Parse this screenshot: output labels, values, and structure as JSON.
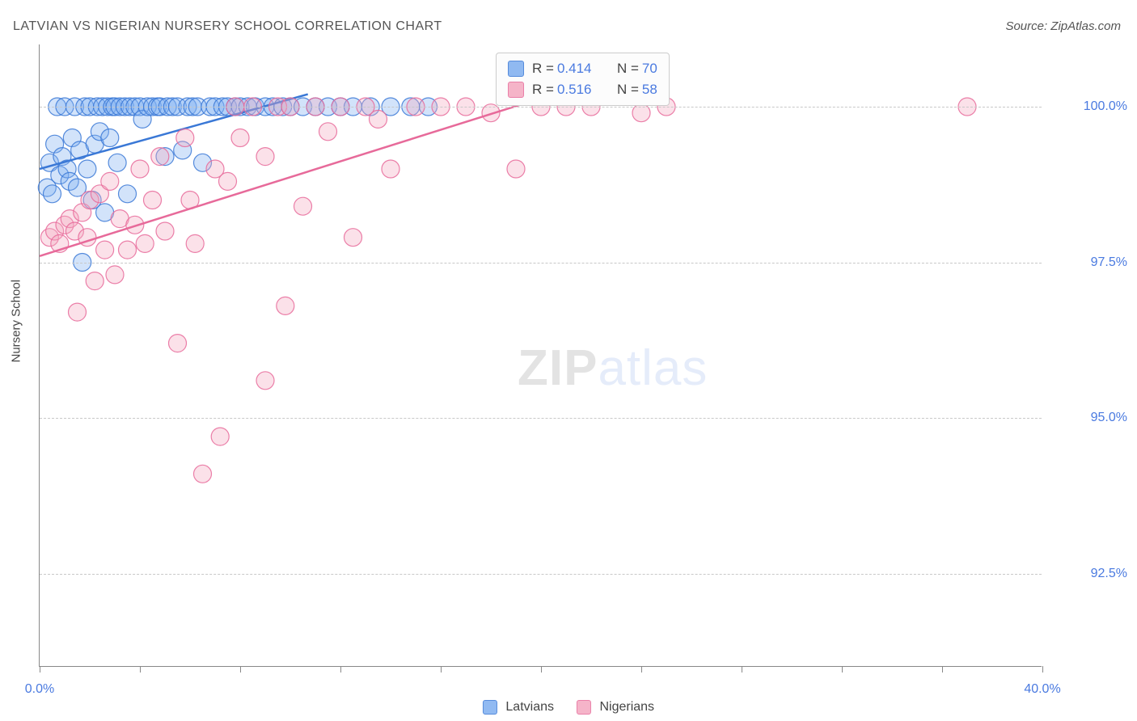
{
  "title": "LATVIAN VS NIGERIAN NURSERY SCHOOL CORRELATION CHART",
  "source": "Source: ZipAtlas.com",
  "chart": {
    "type": "scatter",
    "background_color": "#ffffff",
    "grid_color": "#c8c8c8",
    "axis_color": "#888888",
    "xlim": [
      0.0,
      40.0
    ],
    "ylim": [
      91.0,
      101.0
    ],
    "x_tick_positions": [
      0,
      4,
      8,
      12,
      16,
      20,
      24,
      28,
      32,
      36,
      40
    ],
    "x_tick_labels": {
      "0": "0.0%",
      "40": "40.0%"
    },
    "y_grid_positions": [
      92.5,
      95.0,
      97.5,
      100.0
    ],
    "y_tick_labels": [
      "92.5%",
      "95.0%",
      "97.5%",
      "100.0%"
    ],
    "y_axis_title": "Nursery School",
    "marker_radius": 11,
    "marker_opacity": 0.35,
    "marker_stroke_opacity": 0.85,
    "line_width": 2.5,
    "title_fontsize": 16,
    "label_fontsize": 15,
    "tick_fontsize": 16,
    "tick_label_color": "#4a7ae0",
    "series": [
      {
        "name": "Latvians",
        "color_fill": "#7eaef0",
        "color_stroke": "#3a78d6",
        "R": "0.414",
        "N": "70",
        "trend": {
          "x1": 0.0,
          "y1": 99.0,
          "x2": 10.7,
          "y2": 100.2
        },
        "points": [
          [
            0.3,
            98.7
          ],
          [
            0.4,
            99.1
          ],
          [
            0.5,
            98.6
          ],
          [
            0.6,
            99.4
          ],
          [
            0.7,
            100.0
          ],
          [
            0.8,
            98.9
          ],
          [
            0.9,
            99.2
          ],
          [
            1.0,
            100.0
          ],
          [
            1.1,
            99.0
          ],
          [
            1.2,
            98.8
          ],
          [
            1.3,
            99.5
          ],
          [
            1.4,
            100.0
          ],
          [
            1.5,
            98.7
          ],
          [
            1.6,
            99.3
          ],
          [
            1.7,
            97.5
          ],
          [
            1.8,
            100.0
          ],
          [
            1.9,
            99.0
          ],
          [
            2.0,
            100.0
          ],
          [
            2.1,
            98.5
          ],
          [
            2.2,
            99.4
          ],
          [
            2.3,
            100.0
          ],
          [
            2.4,
            99.6
          ],
          [
            2.5,
            100.0
          ],
          [
            2.6,
            98.3
          ],
          [
            2.7,
            100.0
          ],
          [
            2.8,
            99.5
          ],
          [
            2.9,
            100.0
          ],
          [
            3.0,
            100.0
          ],
          [
            3.1,
            99.1
          ],
          [
            3.2,
            100.0
          ],
          [
            3.4,
            100.0
          ],
          [
            3.5,
            98.6
          ],
          [
            3.6,
            100.0
          ],
          [
            3.8,
            100.0
          ],
          [
            4.0,
            100.0
          ],
          [
            4.1,
            99.8
          ],
          [
            4.3,
            100.0
          ],
          [
            4.5,
            100.0
          ],
          [
            4.7,
            100.0
          ],
          [
            4.8,
            100.0
          ],
          [
            5.0,
            99.2
          ],
          [
            5.1,
            100.0
          ],
          [
            5.3,
            100.0
          ],
          [
            5.5,
            100.0
          ],
          [
            5.7,
            99.3
          ],
          [
            5.9,
            100.0
          ],
          [
            6.1,
            100.0
          ],
          [
            6.3,
            100.0
          ],
          [
            6.5,
            99.1
          ],
          [
            6.8,
            100.0
          ],
          [
            7.0,
            100.0
          ],
          [
            7.3,
            100.0
          ],
          [
            7.5,
            100.0
          ],
          [
            7.8,
            100.0
          ],
          [
            8.0,
            100.0
          ],
          [
            8.3,
            100.0
          ],
          [
            8.6,
            100.0
          ],
          [
            9.0,
            100.0
          ],
          [
            9.3,
            100.0
          ],
          [
            9.7,
            100.0
          ],
          [
            10.0,
            100.0
          ],
          [
            10.5,
            100.0
          ],
          [
            11.0,
            100.0
          ],
          [
            11.5,
            100.0
          ],
          [
            12.0,
            100.0
          ],
          [
            12.5,
            100.0
          ],
          [
            13.2,
            100.0
          ],
          [
            14.0,
            100.0
          ],
          [
            14.8,
            100.0
          ],
          [
            15.5,
            100.0
          ]
        ]
      },
      {
        "name": "Nigerians",
        "color_fill": "#f4a8c0",
        "color_stroke": "#e76a9a",
        "R": "0.516",
        "N": "58",
        "trend": {
          "x1": 0.0,
          "y1": 97.6,
          "x2": 20.5,
          "y2": 100.2
        },
        "points": [
          [
            0.4,
            97.9
          ],
          [
            0.6,
            98.0
          ],
          [
            0.8,
            97.8
          ],
          [
            1.0,
            98.1
          ],
          [
            1.2,
            98.2
          ],
          [
            1.4,
            98.0
          ],
          [
            1.5,
            96.7
          ],
          [
            1.7,
            98.3
          ],
          [
            1.9,
            97.9
          ],
          [
            2.0,
            98.5
          ],
          [
            2.2,
            97.2
          ],
          [
            2.4,
            98.6
          ],
          [
            2.6,
            97.7
          ],
          [
            2.8,
            98.8
          ],
          [
            3.0,
            97.3
          ],
          [
            3.2,
            98.2
          ],
          [
            3.5,
            97.7
          ],
          [
            3.8,
            98.1
          ],
          [
            4.0,
            99.0
          ],
          [
            4.2,
            97.8
          ],
          [
            4.5,
            98.5
          ],
          [
            4.8,
            99.2
          ],
          [
            5.0,
            98.0
          ],
          [
            5.5,
            96.2
          ],
          [
            5.8,
            99.5
          ],
          [
            6.0,
            98.5
          ],
          [
            6.2,
            97.8
          ],
          [
            6.5,
            94.1
          ],
          [
            7.0,
            99.0
          ],
          [
            7.2,
            94.7
          ],
          [
            7.5,
            98.8
          ],
          [
            7.8,
            100.0
          ],
          [
            8.0,
            99.5
          ],
          [
            8.5,
            100.0
          ],
          [
            9.0,
            99.2
          ],
          [
            9.0,
            95.6
          ],
          [
            9.5,
            100.0
          ],
          [
            9.8,
            96.8
          ],
          [
            10.0,
            100.0
          ],
          [
            10.5,
            98.4
          ],
          [
            11.0,
            100.0
          ],
          [
            11.5,
            99.6
          ],
          [
            12.0,
            100.0
          ],
          [
            12.5,
            97.9
          ],
          [
            13.0,
            100.0
          ],
          [
            13.5,
            99.8
          ],
          [
            14.0,
            99.0
          ],
          [
            15.0,
            100.0
          ],
          [
            16.0,
            100.0
          ],
          [
            17.0,
            100.0
          ],
          [
            18.0,
            99.9
          ],
          [
            19.0,
            99.0
          ],
          [
            20.0,
            100.0
          ],
          [
            21.0,
            100.0
          ],
          [
            22.0,
            100.0
          ],
          [
            24.0,
            99.9
          ],
          [
            25.0,
            100.0
          ],
          [
            37.0,
            100.0
          ]
        ]
      }
    ]
  },
  "legend": {
    "latvians": "Latvians",
    "nigerians": "Nigerians"
  },
  "stats_labels": {
    "r": "R =",
    "n": "N ="
  },
  "watermark": {
    "zip": "ZIP",
    "atlas": "atlas"
  }
}
